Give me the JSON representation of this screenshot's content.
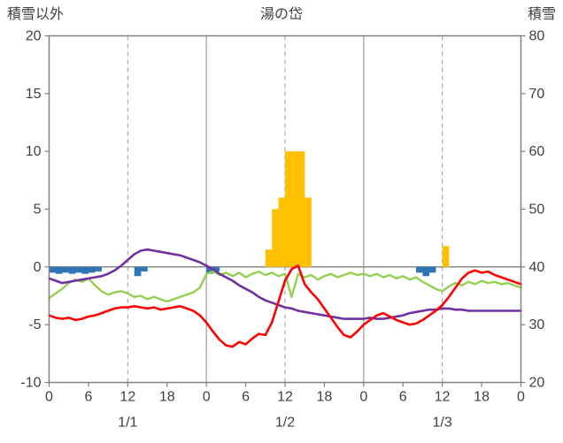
{
  "header": {
    "left_axis_title": "積雪以外",
    "title": "湯の岱",
    "right_axis_title": "積雪"
  },
  "chart_data": {
    "type": "mixed",
    "title": "湯の岱",
    "x_unit": "hour",
    "x_range": [
      0,
      72
    ],
    "left_axis": {
      "title": "積雪以外",
      "range": [
        -10,
        20
      ],
      "ticks": [
        20,
        15,
        10,
        5,
        0,
        -5,
        -10
      ]
    },
    "right_axis": {
      "title": "積雪",
      "range": [
        20,
        80
      ],
      "ticks": [
        80,
        70,
        60,
        50,
        40,
        30,
        20
      ]
    },
    "x_axis": {
      "tick_interval_hours": 6,
      "tick_labels": [
        "0",
        "6",
        "12",
        "18",
        "0",
        "6",
        "12",
        "18",
        "0",
        "6",
        "12",
        "18",
        "0"
      ],
      "day_labels": [
        "1/1",
        "1/2",
        "1/3"
      ],
      "day_label_hours": [
        12,
        36,
        60
      ]
    },
    "gridlines": {
      "solid_vertical_hours": [
        24,
        48
      ],
      "dashed_vertical_hours": [
        12,
        36,
        60
      ],
      "zero_line_left_value": 0
    },
    "colors": {
      "border": "#808080",
      "grid": "#9a9a9a",
      "zero_line": "#808080",
      "tick_text": "#404040",
      "title_text": "#404040",
      "bar_orange": "#FFC000",
      "bar_blue": "#2E75B6",
      "line_red": "#FF0000",
      "line_green": "#92D050",
      "line_purple": "#7030A0"
    },
    "series": [
      {
        "name": "orange-bars",
        "type": "bar",
        "axis": "left",
        "color": "#FFC000",
        "points": [
          [
            33,
            1.5
          ],
          [
            34,
            5
          ],
          [
            35,
            6
          ],
          [
            36,
            10
          ],
          [
            37,
            10
          ],
          [
            38,
            10
          ],
          [
            39,
            6
          ],
          [
            60,
            1.8
          ]
        ]
      },
      {
        "name": "blue-bars",
        "type": "bar",
        "axis": "left",
        "color": "#2E75B6",
        "points": [
          [
            0,
            -0.5
          ],
          [
            1,
            -0.6
          ],
          [
            2,
            -0.5
          ],
          [
            3,
            -0.6
          ],
          [
            4,
            -0.5
          ],
          [
            5,
            -0.6
          ],
          [
            6,
            -0.5
          ],
          [
            7,
            -0.4
          ],
          [
            13,
            -0.8
          ],
          [
            14,
            -0.4
          ],
          [
            24,
            -0.6
          ],
          [
            25,
            -0.4
          ],
          [
            56,
            -0.5
          ],
          [
            57,
            -0.8
          ],
          [
            58,
            -0.5
          ]
        ]
      },
      {
        "name": "green-line",
        "type": "line",
        "axis": "left",
        "color": "#92D050",
        "width": 2.4,
        "values": [
          -2.7,
          -2.3,
          -1.9,
          -1.4,
          -1.1,
          -1.3,
          -1.0,
          -1.6,
          -2.1,
          -2.4,
          -2.2,
          -2.1,
          -2.3,
          -2.6,
          -2.5,
          -2.8,
          -2.6,
          -2.8,
          -3.0,
          -2.8,
          -2.6,
          -2.4,
          -2.2,
          -1.8,
          -0.6,
          -0.4,
          -0.7,
          -0.5,
          -0.8,
          -0.5,
          -0.9,
          -0.6,
          -0.4,
          -0.7,
          -0.5,
          -0.8,
          -0.6,
          -2.6,
          -0.6,
          -0.9,
          -0.7,
          -1.1,
          -0.8,
          -0.6,
          -0.9,
          -0.7,
          -0.5,
          -0.7,
          -0.6,
          -0.8,
          -0.6,
          -0.9,
          -0.7,
          -1.0,
          -0.8,
          -1.1,
          -0.9,
          -1.3,
          -1.6,
          -1.9,
          -2.1,
          -1.7,
          -1.4,
          -1.6,
          -1.3,
          -1.5,
          -1.2,
          -1.4,
          -1.3,
          -1.5,
          -1.4,
          -1.6,
          -1.8
        ]
      },
      {
        "name": "purple-line",
        "type": "line",
        "axis": "right",
        "color": "#7030A0",
        "width": 2.6,
        "values": [
          38,
          37.6,
          37.2,
          37.4,
          37.6,
          37.8,
          38,
          38.2,
          38.4,
          38.8,
          39.4,
          40.2,
          41.2,
          42.2,
          42.8,
          43,
          42.8,
          42.6,
          42.4,
          42.2,
          42,
          41.6,
          41.2,
          40.8,
          40.2,
          39.6,
          38.8,
          38.2,
          37.6,
          36.8,
          36.2,
          35.6,
          34.8,
          34.2,
          33.8,
          33.4,
          33,
          32.8,
          32.4,
          32.2,
          32,
          31.8,
          31.6,
          31.4,
          31.2,
          31,
          31,
          31,
          31,
          31.2,
          31,
          31,
          31.2,
          31.4,
          31.6,
          32,
          32.2,
          32.4,
          32.6,
          32.6,
          32.8,
          32.8,
          32.6,
          32.6,
          32.4,
          32.4,
          32.4,
          32.4,
          32.4,
          32.4,
          32.4,
          32.4,
          32.4
        ]
      },
      {
        "name": "red-line",
        "type": "line",
        "axis": "left",
        "color": "#FF0000",
        "width": 2.6,
        "values": [
          -4.2,
          -4.4,
          -4.5,
          -4.4,
          -4.6,
          -4.5,
          -4.3,
          -4.2,
          -4.0,
          -3.8,
          -3.6,
          -3.5,
          -3.5,
          -3.4,
          -3.5,
          -3.6,
          -3.5,
          -3.7,
          -3.6,
          -3.5,
          -3.4,
          -3.6,
          -3.8,
          -4.2,
          -4.8,
          -5.6,
          -6.3,
          -6.8,
          -6.9,
          -6.5,
          -6.7,
          -6.2,
          -5.8,
          -5.9,
          -4.8,
          -3.0,
          -1.2,
          -0.2,
          0.1,
          -1.5,
          -2.2,
          -2.8,
          -3.6,
          -4.4,
          -5.2,
          -5.9,
          -6.1,
          -5.6,
          -5.0,
          -4.6,
          -4.2,
          -4.0,
          -4.3,
          -4.6,
          -4.8,
          -5.0,
          -4.9,
          -4.6,
          -4.2,
          -3.8,
          -3.3,
          -2.6,
          -1.8,
          -1.0,
          -0.5,
          -0.3,
          -0.5,
          -0.4,
          -0.7,
          -0.9,
          -1.1,
          -1.3,
          -1.5
        ]
      }
    ]
  }
}
